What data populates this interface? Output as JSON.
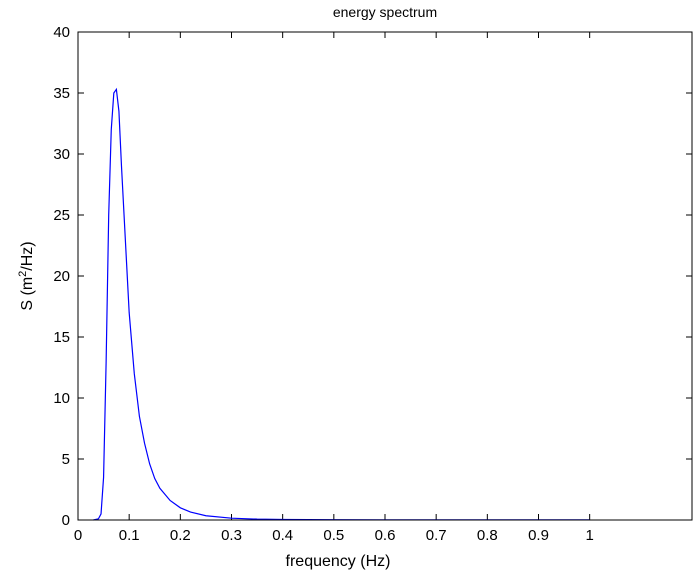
{
  "chart_data": {
    "type": "line",
    "title": "energy spectrum",
    "xlabel": "frequency (Hz)",
    "ylabel_prefix": "S (m",
    "ylabel_sup": "2",
    "ylabel_suffix": "/Hz)",
    "xlim": [
      0,
      1.2
    ],
    "ylim": [
      0,
      40
    ],
    "xticks": [
      0,
      0.1,
      0.2,
      0.3,
      0.4,
      0.5,
      0.6,
      0.7,
      0.8,
      0.9,
      1
    ],
    "xtick_labels": [
      "0",
      "0.1",
      "0.2",
      "0.3",
      "0.4",
      "0.5",
      "0.6",
      "0.7",
      "0.8",
      "0.9",
      "1"
    ],
    "yticks": [
      0,
      5,
      10,
      15,
      20,
      25,
      30,
      35,
      40
    ],
    "ytick_labels": [
      "0",
      "5",
      "10",
      "15",
      "20",
      "25",
      "30",
      "35",
      "40"
    ],
    "grid": false,
    "line_color": "#0000ff",
    "series": [
      {
        "x": [
          0.03,
          0.04,
          0.045,
          0.05,
          0.055,
          0.06,
          0.065,
          0.07,
          0.075,
          0.08,
          0.085,
          0.09,
          0.095,
          0.1,
          0.11,
          0.12,
          0.13,
          0.14,
          0.15,
          0.16,
          0.18,
          0.2,
          0.22,
          0.25,
          0.3,
          0.35,
          0.4,
          0.5,
          0.6,
          0.7,
          0.8,
          0.9,
          1.0
        ],
        "y": [
          0,
          0.1,
          0.5,
          3.5,
          13,
          25,
          32,
          35,
          35.3,
          33.5,
          29,
          25,
          21,
          17,
          12,
          8.5,
          6.3,
          4.6,
          3.4,
          2.6,
          1.6,
          1.0,
          0.65,
          0.35,
          0.15,
          0.07,
          0.04,
          0.02,
          0.01,
          0.01,
          0.01,
          0.01,
          0.01
        ]
      }
    ]
  }
}
